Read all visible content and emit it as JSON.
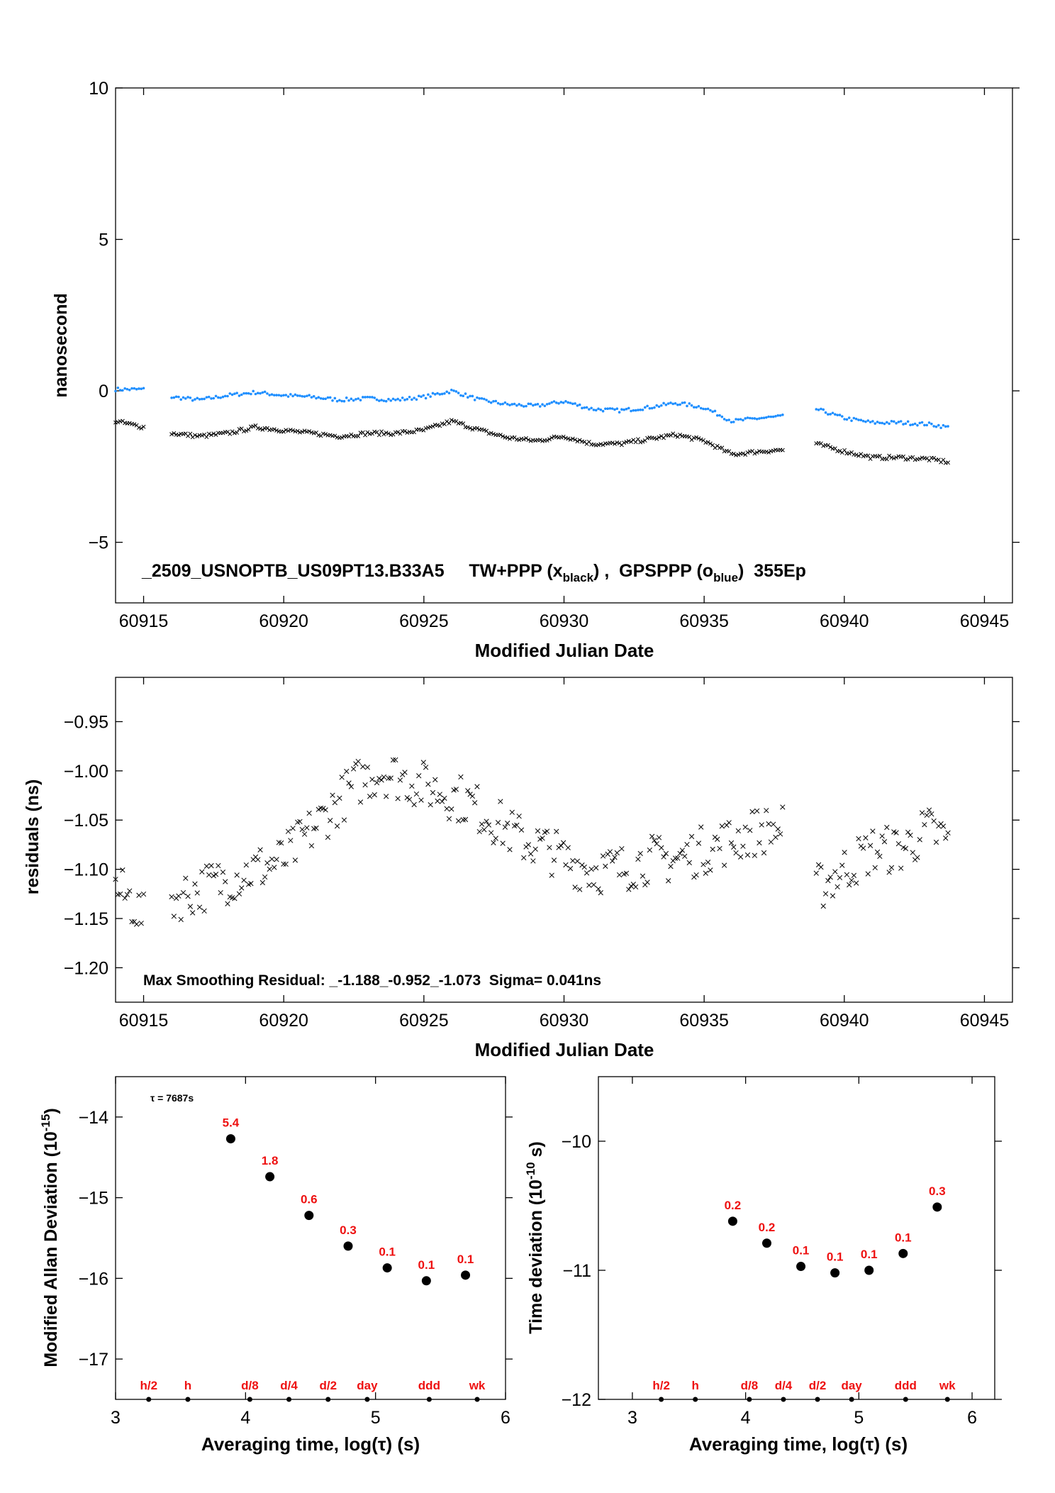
{
  "chart_data": [
    {
      "type": "scatter",
      "xlabel": "Modified Julian Date",
      "ylabel": "nanosecond",
      "xlim": [
        60914,
        60946
      ],
      "ylim": [
        -7,
        10
      ],
      "xticks": [
        60915,
        60920,
        60925,
        60930,
        60935,
        60940,
        60945
      ],
      "yticks": [
        -5,
        0,
        5,
        10
      ],
      "annotation": {
        "prefix": "_2509_USNOPTB_US09PT13.B33A5     TW+PPP (x",
        "sub1": "black",
        "mid": ") ,  GPSPPP (o",
        "sub2": "blue",
        "suffix": ")  355Ep"
      },
      "series": [
        {
          "marker": "dot",
          "color": "#1f8fff",
          "segments": [
            {
              "x": [
                60914.0,
                60915.0
              ],
              "y": [
                0.05,
                0.05
              ]
            },
            {
              "x": [
                60916.0,
                60917.0,
                60918.0,
                60919.0,
                60920.0,
                60921.0,
                60922.0,
                60923.0,
                60924.0,
                60925.0,
                60926.0,
                60927.0,
                60928.0,
                60929.0,
                60930.0,
                60931.0,
                60932.0,
                60933.0,
                60934.0,
                60935.0,
                60936.0,
                60937.0,
                60937.8
              ],
              "y": [
                -0.2,
                -0.3,
                -0.15,
                -0.05,
                -0.15,
                -0.2,
                -0.3,
                -0.25,
                -0.3,
                -0.2,
                0.0,
                -0.3,
                -0.45,
                -0.5,
                -0.35,
                -0.6,
                -0.65,
                -0.55,
                -0.4,
                -0.55,
                -1.0,
                -0.9,
                -0.85
              ]
            },
            {
              "x": [
                60939.0,
                60940.0,
                60941.0,
                60942.0,
                60943.0,
                60943.7
              ],
              "y": [
                -0.6,
                -0.9,
                -1.05,
                -1.05,
                -1.1,
                -1.2
              ]
            }
          ]
        },
        {
          "marker": "x",
          "color": "#000000",
          "segments": [
            {
              "x": [
                60914.0,
                60915.0
              ],
              "y": [
                -1.0,
                -1.2
              ]
            },
            {
              "x": [
                60916.0,
                60917.0,
                60918.0,
                60919.0,
                60920.0,
                60921.0,
                60922.0,
                60923.0,
                60924.0,
                60925.0,
                60926.0,
                60927.0,
                60928.0,
                60929.0,
                60930.0,
                60931.0,
                60932.0,
                60933.0,
                60934.0,
                60935.0,
                60936.0,
                60937.0,
                60937.8
              ],
              "y": [
                -1.4,
                -1.5,
                -1.4,
                -1.2,
                -1.3,
                -1.4,
                -1.5,
                -1.4,
                -1.4,
                -1.3,
                -1.0,
                -1.3,
                -1.55,
                -1.65,
                -1.5,
                -1.75,
                -1.75,
                -1.6,
                -1.45,
                -1.65,
                -2.1,
                -2.0,
                -1.95
              ]
            },
            {
              "x": [
                60939.0,
                60940.0,
                60941.0,
                60942.0,
                60943.0,
                60943.7
              ],
              "y": [
                -1.75,
                -2.0,
                -2.2,
                -2.2,
                -2.25,
                -2.35
              ]
            }
          ]
        }
      ]
    },
    {
      "type": "scatter",
      "xlabel": "Modified Julian Date",
      "ylabel": "residuals (ns)",
      "xlim": [
        60914,
        60946
      ],
      "ylim": [
        -1.235,
        -0.905
      ],
      "xticks": [
        60915,
        60920,
        60925,
        60930,
        60935,
        60940,
        60945
      ],
      "yticks": [
        -1.2,
        -1.15,
        -1.1,
        -1.05,
        -1.0,
        -0.95
      ],
      "ytick_labels": [
        "−1.20",
        "−1.15",
        "−1.10",
        "−1.05",
        "−1.00",
        "−0.95"
      ],
      "annotation": "Max Smoothing Residual: _-1.188_-0.952_-1.073  Sigma= 0.041ns",
      "series": [
        {
          "marker": "x",
          "color": "#000000",
          "segments": [
            {
              "x": [
                60914.0,
                60914.5,
                60915.0
              ],
              "y": [
                -1.12,
                -1.13,
                -1.15
              ]
            },
            {
              "x": [
                60916.0,
                60917.0,
                60918.0,
                60919.0,
                60920.0,
                60921.0,
                60922.0,
                60922.7,
                60923.5,
                60924.5,
                60925.5,
                60926.5,
                60927.5,
                60928.5,
                60929.5,
                60930.0,
                60931.0,
                60932.0,
                60933.0,
                60934.0,
                60935.0,
                60936.0,
                60937.0,
                60937.8
              ],
              "y": [
                -1.13,
                -1.12,
                -1.11,
                -1.1,
                -1.09,
                -1.06,
                -1.03,
                -1.01,
                -1.0,
                -1.01,
                -1.02,
                -1.03,
                -1.05,
                -1.07,
                -1.08,
                -1.09,
                -1.1,
                -1.1,
                -1.09,
                -1.09,
                -1.08,
                -1.07,
                -1.06,
                -1.06
              ]
            },
            {
              "x": [
                60939.0,
                60940.0,
                60941.0,
                60942.0,
                60943.0,
                60943.7
              ],
              "y": [
                -1.12,
                -1.1,
                -1.08,
                -1.08,
                -1.06,
                -1.07
              ]
            }
          ]
        }
      ]
    },
    {
      "type": "scatter",
      "xlabel": "Averaging time, log(τ) (s)",
      "ylabel": "Modified Allan Deviation (10",
      "ylabel_sup": "-15",
      "ylabel_suffix": ")",
      "xlim": [
        3,
        6
      ],
      "ylim": [
        -17.5,
        -13.5
      ],
      "xticks": [
        3,
        4,
        5,
        6
      ],
      "yticks": [
        -17,
        -16,
        -15,
        -14
      ],
      "tau_note": "τ = 7687s",
      "x": [
        3.886,
        4.187,
        4.488,
        4.789,
        5.09,
        5.391,
        5.692
      ],
      "y": [
        -14.27,
        -14.74,
        -15.22,
        -15.6,
        -15.87,
        -16.03,
        -15.96
      ],
      "point_labels": [
        "5.4",
        "1.8",
        "0.6",
        "0.3",
        "0.1",
        "0.1",
        "0.1"
      ],
      "reference_marks": [
        {
          "label": "h/2",
          "x": 3.255
        },
        {
          "label": "h",
          "x": 3.556
        },
        {
          "label": "d/8",
          "x": 4.033
        },
        {
          "label": "d/4",
          "x": 4.334
        },
        {
          "label": "d/2",
          "x": 4.635
        },
        {
          "label": "day",
          "x": 4.936
        },
        {
          "label": "ddd",
          "x": 5.413
        },
        {
          "label": "wk",
          "x": 5.782
        }
      ]
    },
    {
      "type": "scatter",
      "xlabel": "Averaging time, log(τ) (s)",
      "ylabel": "Time deviation (10",
      "ylabel_sup": "-10",
      "ylabel_suffix": " s)",
      "xlim": [
        2.7,
        6.2
      ],
      "ylim": [
        -12,
        -9.5
      ],
      "xticks": [
        3,
        4,
        5,
        6
      ],
      "yticks": [
        -12,
        -11,
        -10
      ],
      "x": [
        3.886,
        4.187,
        4.488,
        4.789,
        5.09,
        5.391,
        5.692
      ],
      "y": [
        -10.62,
        -10.79,
        -10.97,
        -11.02,
        -11.0,
        -10.87,
        -10.51
      ],
      "point_labels": [
        "0.2",
        "0.2",
        "0.1",
        "0.1",
        "0.1",
        "0.1",
        "0.3"
      ],
      "reference_marks": [
        {
          "label": "h/2",
          "x": 3.255
        },
        {
          "label": "h",
          "x": 3.556
        },
        {
          "label": "d/8",
          "x": 4.033
        },
        {
          "label": "d/4",
          "x": 4.334
        },
        {
          "label": "d/2",
          "x": 4.635
        },
        {
          "label": "day",
          "x": 4.936
        },
        {
          "label": "ddd",
          "x": 5.413
        },
        {
          "label": "wk",
          "x": 5.782
        }
      ]
    }
  ]
}
